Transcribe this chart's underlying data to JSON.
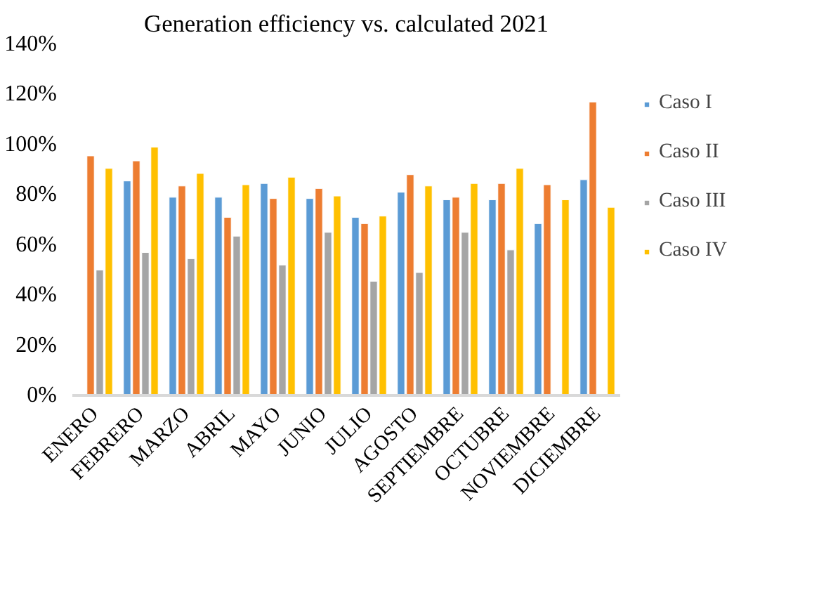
{
  "chart_data": {
    "type": "bar",
    "title": "Generation efficiency vs. calculated 2021",
    "categories": [
      "ENERO",
      "FEBRERO",
      "MARZO",
      "ABRIL",
      "MAYO",
      "JUNIO",
      "JULIO",
      "AGOSTO",
      "SEPTIEMBRE",
      "OCTUBRE",
      "NOVIEMBRE",
      "DICIEMBRE"
    ],
    "series": [
      {
        "name": "Caso I",
        "color": "#5b9bd5",
        "values": [
          null,
          85.5,
          79,
          79,
          84.5,
          78.5,
          71,
          81,
          78,
          78,
          68.5,
          86
        ]
      },
      {
        "name": "Caso II",
        "color": "#ed7d31",
        "values": [
          95.5,
          93.5,
          83.5,
          71,
          78.5,
          82.5,
          68.5,
          88,
          79,
          84.5,
          84,
          117
        ]
      },
      {
        "name": "Caso III",
        "color": "#a5a5a5",
        "values": [
          50,
          57,
          54.5,
          63.5,
          52,
          65,
          45.5,
          49,
          65,
          58,
          null,
          null
        ]
      },
      {
        "name": "Caso IV",
        "color": "#ffc000",
        "values": [
          90.5,
          99,
          88.5,
          84,
          87,
          79.5,
          71.5,
          83.5,
          84.5,
          90.5,
          78,
          75
        ]
      }
    ],
    "ylim": [
      0,
      140
    ],
    "yticks": [
      {
        "value": 0,
        "label": "0%"
      },
      {
        "value": 20,
        "label": "20%"
      },
      {
        "value": 40,
        "label": "40%"
      },
      {
        "value": 60,
        "label": "60%"
      },
      {
        "value": 80,
        "label": "80%"
      },
      {
        "value": 100,
        "label": "100%"
      },
      {
        "value": 120,
        "label": "120%"
      },
      {
        "value": 140,
        "label": "140%"
      }
    ],
    "grid": false,
    "legend": "right"
  }
}
